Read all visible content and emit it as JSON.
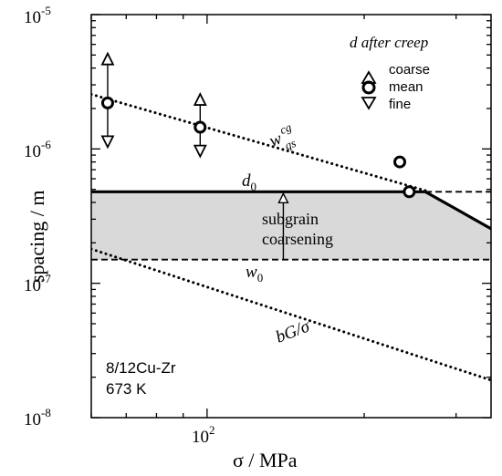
{
  "chart_data": {
    "type": "scatter",
    "title": "",
    "xlabel": {
      "main": "σ",
      "unit": "MPa"
    },
    "ylabel": {
      "main": "spacing",
      "unit": "m"
    },
    "x_scale": "log",
    "y_scale": "log",
    "xlim": [
      60,
      350
    ],
    "ylim": [
      1e-08,
      1e-05
    ],
    "x_tick_labels": [
      {
        "value": 100,
        "base": "10",
        "exp": "2"
      }
    ],
    "y_tick_labels": [
      {
        "value": 1e-05,
        "base": "10",
        "exp": "-5"
      },
      {
        "value": 1e-06,
        "base": "10",
        "exp": "-6"
      },
      {
        "value": 1e-07,
        "base": "10",
        "exp": "-7"
      },
      {
        "value": 1e-08,
        "base": "10",
        "exp": "-8"
      }
    ],
    "grid": false,
    "legend": {
      "title": "d after creep",
      "position": "top-right",
      "entries": [
        {
          "marker": "triangle-up",
          "label": "coarse"
        },
        {
          "marker": "circle",
          "label": "mean"
        },
        {
          "marker": "triangle-down",
          "label": "fine"
        }
      ]
    },
    "measurements": [
      {
        "sigma": 64.5,
        "coarse": 4.6e-06,
        "mean": 2.2e-06,
        "fine": 1.15e-06
      },
      {
        "sigma": 97,
        "coarse": 2.3e-06,
        "mean": 1.45e-06,
        "fine": 9.8e-07
      }
    ],
    "extra_means": [
      {
        "sigma": 234,
        "value": 8e-07
      },
      {
        "sigma": 244,
        "value": 4.8e-07
      }
    ],
    "lines": [
      {
        "label": "w_qs^cg",
        "style": "dotted",
        "points": [
          [
            60,
            2.55e-06
          ],
          [
            262,
            4.9e-07
          ]
        ]
      },
      {
        "label": "d_0",
        "style": "solid",
        "points": [
          [
            60,
            4.8e-07
          ],
          [
            262,
            4.8e-07
          ],
          [
            350,
            2.55e-07
          ]
        ]
      },
      {
        "label": "",
        "style": "dashed",
        "points": [
          [
            262,
            4.8e-07
          ],
          [
            350,
            4.8e-07
          ]
        ]
      },
      {
        "label": "w_0",
        "style": "dashed",
        "points": [
          [
            60,
            1.5e-07
          ],
          [
            350,
            1.5e-07
          ]
        ]
      },
      {
        "label": "bG/σ",
        "style": "dotted",
        "points": [
          [
            60,
            1.8e-07
          ],
          [
            350,
            1.9e-08
          ]
        ]
      }
    ],
    "shaded_band": {
      "x": [
        60,
        350
      ],
      "lower": 1.5e-07,
      "upper_line": "d_0"
    },
    "annotations": {
      "d0": {
        "main": "d",
        "sub": "0"
      },
      "w0": {
        "main": "w",
        "sub": "0"
      },
      "wqs": {
        "main": "w",
        "sup": "cg",
        "sub": "qs"
      },
      "bg": "bG/σ",
      "coarsening": [
        "subgrain",
        "coarsening"
      ],
      "material": "8/12Cu-Zr",
      "temperature": "673 K"
    }
  },
  "colors": {
    "band": "#d9d9d9",
    "ink": "#000000"
  }
}
